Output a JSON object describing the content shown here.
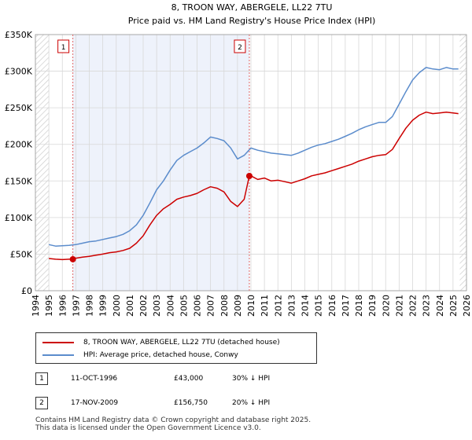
{
  "chart_data": {
    "type": "line",
    "title": "8, TROON WAY, ABERGELE, LL22 7TU",
    "subtitle": "Price paid vs. HM Land Registry's House Price Index (HPI)",
    "xlim": [
      1994,
      2026
    ],
    "ylim": [
      0,
      350000
    ],
    "x_ticks": [
      1994,
      1995,
      1996,
      1997,
      1998,
      1999,
      2000,
      2001,
      2002,
      2003,
      2004,
      2005,
      2006,
      2007,
      2008,
      2009,
      2010,
      2011,
      2012,
      2013,
      2014,
      2015,
      2016,
      2017,
      2018,
      2019,
      2020,
      2021,
      2022,
      2023,
      2024,
      2025,
      2026
    ],
    "y_ticks": [
      0,
      50000,
      100000,
      150000,
      200000,
      250000,
      300000,
      350000
    ],
    "y_tick_labels": [
      "£0",
      "£50K",
      "£100K",
      "£150K",
      "£200K",
      "£250K",
      "£300K",
      "£350K"
    ],
    "data_start": 1995.0,
    "data_end": 2025.5,
    "grid": true,
    "series": [
      {
        "name": "8, TROON WAY, ABERGELE, LL22 7TU (detached house)",
        "color": "#cc0000",
        "x": [
          1995.0,
          1995.5,
          1996.0,
          1996.5,
          1996.78,
          1997.0,
          1997.5,
          1998.0,
          1998.5,
          1999.0,
          1999.5,
          2000.0,
          2000.5,
          2001.0,
          2001.5,
          2002.0,
          2002.5,
          2003.0,
          2003.5,
          2004.0,
          2004.5,
          2005.0,
          2005.5,
          2006.0,
          2006.5,
          2007.0,
          2007.5,
          2008.0,
          2008.5,
          2009.0,
          2009.5,
          2009.88,
          2010.0,
          2010.5,
          2011.0,
          2011.5,
          2012.0,
          2012.5,
          2013.0,
          2013.5,
          2014.0,
          2014.5,
          2015.0,
          2015.5,
          2016.0,
          2016.5,
          2017.0,
          2017.5,
          2018.0,
          2018.5,
          2019.0,
          2019.5,
          2020.0,
          2020.5,
          2021.0,
          2021.5,
          2022.0,
          2022.5,
          2023.0,
          2023.5,
          2024.0,
          2024.5,
          2025.0,
          2025.4
        ],
        "values": [
          44000,
          43000,
          42500,
          43000,
          43000,
          44500,
          46000,
          47000,
          48500,
          50000,
          52000,
          53000,
          55000,
          58000,
          65000,
          75000,
          90000,
          103000,
          112000,
          118000,
          125000,
          128000,
          130000,
          133000,
          138000,
          142000,
          140000,
          135000,
          122000,
          115000,
          125000,
          156750,
          157000,
          152000,
          154000,
          150000,
          151000,
          149000,
          147000,
          150000,
          153000,
          157000,
          159000,
          161000,
          164000,
          167000,
          170000,
          173000,
          177000,
          180000,
          183000,
          185000,
          186000,
          193000,
          208000,
          222000,
          233000,
          240000,
          244000,
          242000,
          243000,
          244000,
          243000,
          242000
        ]
      },
      {
        "name": "HPI: Average price, detached house, Conwy",
        "color": "#5b8ccc",
        "x": [
          1995.0,
          1995.5,
          1996.0,
          1996.5,
          1997.0,
          1997.5,
          1998.0,
          1998.5,
          1999.0,
          1999.5,
          2000.0,
          2000.5,
          2001.0,
          2001.5,
          2002.0,
          2002.5,
          2003.0,
          2003.5,
          2004.0,
          2004.5,
          2005.0,
          2005.5,
          2006.0,
          2006.5,
          2007.0,
          2007.5,
          2008.0,
          2008.5,
          2009.0,
          2009.5,
          2010.0,
          2010.5,
          2011.0,
          2011.5,
          2012.0,
          2012.5,
          2013.0,
          2013.5,
          2014.0,
          2014.5,
          2015.0,
          2015.5,
          2016.0,
          2016.5,
          2017.0,
          2017.5,
          2018.0,
          2018.5,
          2019.0,
          2019.5,
          2020.0,
          2020.5,
          2021.0,
          2021.5,
          2022.0,
          2022.5,
          2023.0,
          2023.5,
          2024.0,
          2024.5,
          2025.0,
          2025.4
        ],
        "values": [
          63000,
          61000,
          61500,
          62000,
          63000,
          65000,
          67000,
          68000,
          70000,
          72000,
          74000,
          77000,
          82000,
          90000,
          103000,
          120000,
          138000,
          150000,
          165000,
          178000,
          185000,
          190000,
          195000,
          202000,
          210000,
          208000,
          205000,
          195000,
          180000,
          185000,
          195000,
          192000,
          190000,
          188000,
          187000,
          186000,
          185000,
          188000,
          192000,
          196000,
          199000,
          201000,
          204000,
          207000,
          211000,
          215000,
          220000,
          224000,
          227000,
          230000,
          230000,
          238000,
          255000,
          272000,
          288000,
          298000,
          305000,
          303000,
          302000,
          305000,
          303000,
          303000
        ]
      }
    ],
    "annotations": [
      {
        "label": "1",
        "date": 1996.78,
        "value": 43000
      },
      {
        "label": "2",
        "date": 2009.88,
        "value": 156750
      }
    ]
  },
  "legend": {
    "property_label": "8, TROON WAY, ABERGELE, LL22 7TU (detached house)",
    "hpi_label": "HPI: Average price, detached house, Conwy"
  },
  "transactions": [
    {
      "num": "1",
      "date": "11-OCT-1996",
      "price": "£43,000",
      "hpi": "30% ↓ HPI"
    },
    {
      "num": "2",
      "date": "17-NOV-2009",
      "price": "£156,750",
      "hpi": "20% ↓ HPI"
    }
  ],
  "footer": {
    "line1": "Contains HM Land Registry data © Crown copyright and database right 2025.",
    "line2": "This data is licensed under the Open Government Licence v3.0."
  },
  "colors": {
    "property": "#cc0000",
    "hpi": "#5b8ccc",
    "highlight": "#eef2fb",
    "grid": "#d8d8d8"
  }
}
